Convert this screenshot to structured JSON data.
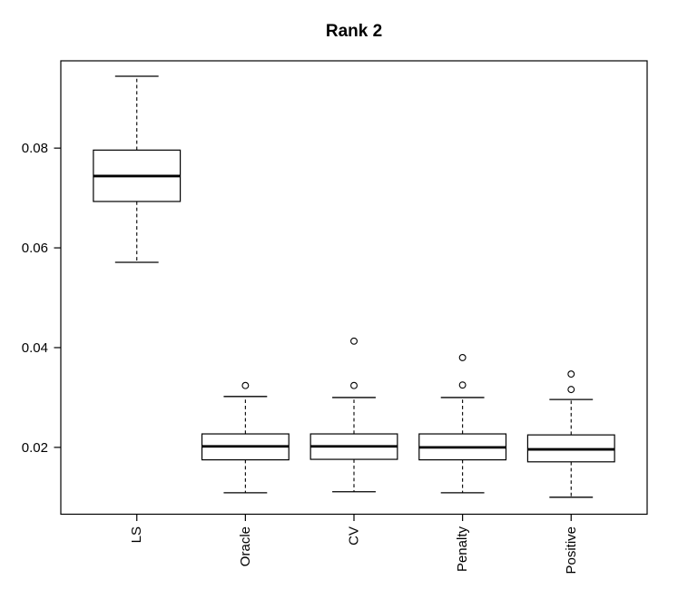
{
  "title": "Rank 2",
  "chart_data": {
    "type": "boxplot",
    "title": "Rank 2",
    "xlabel": "",
    "ylabel": "",
    "categories": [
      "LS",
      "Oracle",
      "CV",
      "Penalty",
      "Positive"
    ],
    "series": [
      {
        "name": "LS",
        "whisker_low": 0.0571,
        "q1": 0.0693,
        "median": 0.0744,
        "q3": 0.0796,
        "whisker_high": 0.0944,
        "outliers": []
      },
      {
        "name": "Oracle",
        "whisker_low": 0.0109,
        "q1": 0.0175,
        "median": 0.0202,
        "q3": 0.0227,
        "whisker_high": 0.0302,
        "outliers": [
          0.0324
        ]
      },
      {
        "name": "CV",
        "whisker_low": 0.0111,
        "q1": 0.0176,
        "median": 0.0202,
        "q3": 0.0227,
        "whisker_high": 0.03,
        "outliers": [
          0.0324,
          0.0413
        ]
      },
      {
        "name": "Penalty",
        "whisker_low": 0.0109,
        "q1": 0.0175,
        "median": 0.02,
        "q3": 0.0227,
        "whisker_high": 0.03,
        "outliers": [
          0.0325,
          0.038
        ]
      },
      {
        "name": "Positive",
        "whisker_low": 0.01,
        "q1": 0.0171,
        "median": 0.0196,
        "q3": 0.0225,
        "whisker_high": 0.0296,
        "outliers": [
          0.0316,
          0.0347
        ]
      }
    ],
    "yticks": [
      0.02,
      0.04,
      0.06,
      0.08
    ],
    "ytick_labels": [
      "0.02",
      "0.04",
      "0.06",
      "0.08"
    ],
    "ylim": [
      0.0066,
      0.0975
    ],
    "grid": false,
    "legend": null,
    "colors": {
      "line": "#000000",
      "background": "#ffffff"
    }
  }
}
